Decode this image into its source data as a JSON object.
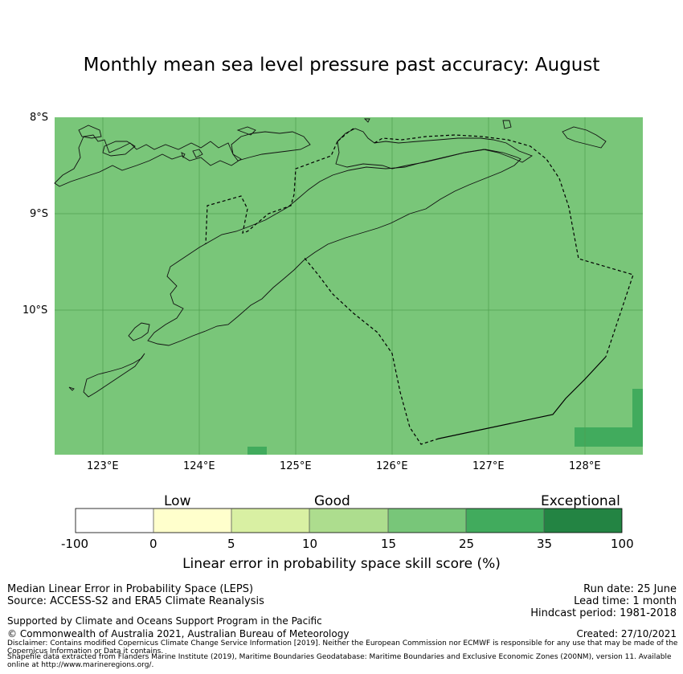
{
  "title": "Monthly mean sea level pressure past accuracy: August",
  "map": {
    "lat_ticks": [
      "8°S",
      "9°S",
      "10°S"
    ],
    "lon_ticks": [
      "123°E",
      "124°E",
      "125°E",
      "126°E",
      "127°E",
      "128°E"
    ],
    "extent": {
      "lon": [
        122.5,
        128.6
      ],
      "lat": [
        -11.5,
        -8.0
      ]
    },
    "background_color": "#79c679",
    "higher_cell_color": "#41ab5d"
  },
  "colorbar": {
    "categories": [
      "Low",
      "Good",
      "Exceptional"
    ],
    "ticks": [
      "-100",
      "0",
      "5",
      "10",
      "15",
      "25",
      "35",
      "100"
    ],
    "colors": [
      "#ffffff",
      "#ffffcc",
      "#d9f0a3",
      "#addd8e",
      "#78c679",
      "#41ab5d",
      "#238443"
    ],
    "label": "Linear error in probability space skill score (%)"
  },
  "info": {
    "method": "Median Linear Error in Probability Space (LEPS)",
    "source": "Source: ACCESS-S2 and ERA5 Climate Reanalysis",
    "run_date": "Run date: 25 June",
    "lead_time": "Lead time: 1 month",
    "hindcast": "Hindcast period: 1981-2018",
    "supported": "Supported by Climate and Oceans Support Program in the Pacific",
    "copyright": "© Commonwealth of Australia 2021, Australian Bureau of Meteorology",
    "created": "Created: 27/10/2021",
    "disclaimer": "Disclaimer: Contains modified Copernicus Climate Change Service Information [2019]. Neither the European Commission nor ECMWF is responsible for any use that may be made of the Copernicus Information or Data it contains.",
    "shapefile": "Shapefile data extracted from Flanders Marine Institute (2019), Maritime Boundaries Geodatabase: Maritime Boundaries and Exclusive Economic Zones (200NM), version 11. Available online at http://www.marineregions.org/."
  }
}
